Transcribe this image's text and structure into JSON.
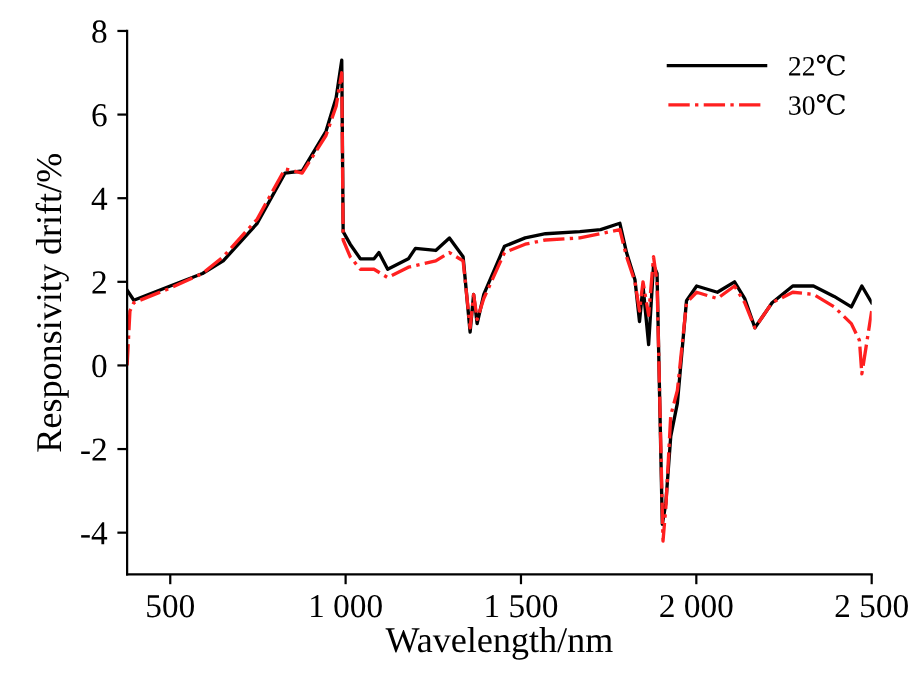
{
  "chart_data": {
    "type": "line",
    "xlabel": "Wavelength/nm",
    "ylabel": "Responsivity drift/%",
    "xlim": [
      377,
      2500
    ],
    "ylim": [
      -5,
      8
    ],
    "xticks": [
      500,
      {
        "value": 1000,
        "label": "1 000"
      },
      {
        "value": 1500,
        "label": "1 500"
      },
      {
        "value": 2000,
        "label": "2 000"
      },
      {
        "value": 2500,
        "label": "2 500"
      }
    ],
    "yticks": [
      -4,
      -2,
      0,
      2,
      4,
      6,
      8
    ],
    "legend": "top right",
    "grid": false,
    "series": [
      {
        "name": "22℃",
        "color": "#000000",
        "line_style": "solid",
        "x": [
          377,
          396,
          500,
          592,
          651,
          748,
          827,
          876,
          944,
          973,
          989,
          993,
          1013,
          1042,
          1081,
          1095,
          1120,
          1179,
          1199,
          1257,
          1296,
          1335,
          1355,
          1365,
          1375,
          1394,
          1453,
          1512,
          1570,
          1668,
          1727,
          1782,
          1801,
          1825,
          1838,
          1848,
          1864,
          1878,
          1888,
          1903,
          1913,
          1927,
          1946,
          1972,
          2001,
          2060,
          2109,
          2138,
          2167,
          2216,
          2275,
          2334,
          2393,
          2442,
          2472,
          2500
        ],
        "values": [
          1.8,
          1.56,
          1.9,
          2.2,
          2.5,
          3.4,
          4.6,
          4.65,
          5.6,
          6.4,
          7.3,
          3.2,
          2.9,
          2.55,
          2.55,
          2.7,
          2.3,
          2.55,
          2.8,
          2.75,
          3.05,
          2.6,
          0.8,
          1.7,
          1.0,
          1.7,
          2.85,
          3.05,
          3.15,
          3.2,
          3.25,
          3.4,
          2.7,
          2.05,
          1.05,
          1.9,
          0.5,
          2.4,
          2.2,
          -3.8,
          -3.3,
          -1.7,
          -0.9,
          1.55,
          1.9,
          1.75,
          2.0,
          1.6,
          0.9,
          1.5,
          1.9,
          1.9,
          1.65,
          1.4,
          1.9,
          1.5
        ]
      },
      {
        "name": "30℃",
        "color": "#ff2020",
        "line_style": "dashdot",
        "x": [
          377,
          385,
          396,
          500,
          592,
          651,
          748,
          827,
          876,
          944,
          973,
          989,
          993,
          1013,
          1042,
          1081,
          1120,
          1179,
          1257,
          1296,
          1335,
          1355,
          1365,
          1375,
          1394,
          1453,
          1512,
          1570,
          1668,
          1727,
          1782,
          1801,
          1825,
          1838,
          1848,
          1864,
          1878,
          1888,
          1905,
          1913,
          1927,
          1946,
          1972,
          2001,
          2060,
          2109,
          2138,
          2167,
          2216,
          2275,
          2334,
          2393,
          2442,
          2465,
          2472,
          2500
        ],
        "values": [
          0.0,
          1.3,
          1.5,
          1.85,
          2.2,
          2.6,
          3.5,
          4.7,
          4.6,
          5.5,
          6.2,
          7.0,
          3.0,
          2.6,
          2.3,
          2.3,
          2.1,
          2.35,
          2.5,
          2.7,
          2.5,
          0.9,
          1.7,
          1.1,
          1.6,
          2.7,
          2.9,
          3.0,
          3.05,
          3.15,
          3.25,
          2.6,
          2.0,
          1.3,
          2.0,
          1.2,
          2.6,
          2.0,
          -4.2,
          -3.4,
          -1.2,
          -0.6,
          1.5,
          1.75,
          1.6,
          1.9,
          1.5,
          0.9,
          1.5,
          1.75,
          1.7,
          1.4,
          1.0,
          0.6,
          -0.2,
          1.3
        ]
      }
    ]
  }
}
